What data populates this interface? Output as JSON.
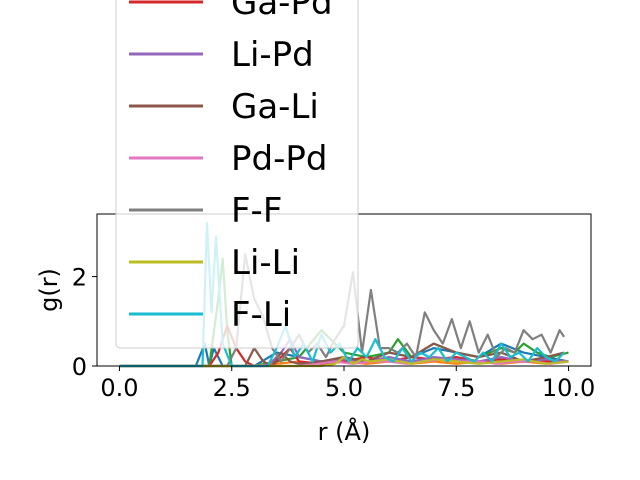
{
  "chart_data": {
    "type": "line",
    "title": "",
    "xlabel": "r (Å)",
    "ylabel": "g(r)",
    "xlim": [
      -0.5,
      10.5
    ],
    "ylim": [
      0,
      3.4
    ],
    "xticks": [
      "0.0",
      "2.5",
      "5.0",
      "7.5",
      "10.0"
    ],
    "xtick_values": [
      0,
      2.5,
      5,
      7.5,
      10
    ],
    "yticks": [
      "0",
      "2"
    ],
    "ytick_values": [
      0,
      2
    ],
    "grid": false,
    "legend_position": "upper-left, extending above the plot area",
    "series": [
      {
        "name": "Ga-Pd",
        "color": "#d62728",
        "x": [
          0,
          1.8,
          2.0,
          2.2,
          2.4,
          2.6,
          2.8,
          3.0,
          3.2,
          3.4,
          3.6,
          3.8,
          4.0,
          4.5,
          5.0,
          5.5,
          6.0,
          6.5,
          7.0,
          7.5,
          8.0,
          8.5,
          9.0,
          9.5,
          10.0
        ],
        "y": [
          0,
          0,
          0,
          0.3,
          0.9,
          0.4,
          0.1,
          0,
          0,
          0,
          0.2,
          0.4,
          0.1,
          0.05,
          0.1,
          0.2,
          0.1,
          0.2,
          0.15,
          0.2,
          0.1,
          0.15,
          0.1,
          0.1,
          0.1
        ]
      },
      {
        "name": "Li-Pd",
        "color": "#9467bd",
        "x": [
          0,
          2.4,
          2.6,
          2.8,
          3.0,
          3.2,
          3.4,
          3.6,
          3.8,
          4.0,
          4.5,
          5.0,
          5.5,
          6.0,
          6.5,
          7.0,
          7.5,
          8.0,
          8.5,
          9.0,
          9.5,
          10.0
        ],
        "y": [
          0,
          0,
          0,
          0,
          0,
          0,
          0.1,
          0.3,
          0.6,
          0.2,
          0.1,
          0.15,
          0.1,
          0.2,
          0.1,
          0.2,
          0.15,
          0.1,
          0.2,
          0.1,
          0.15,
          0.1
        ]
      },
      {
        "name": "Ga-Li",
        "color": "#8c564b",
        "x": [
          0,
          2.8,
          3.0,
          3.2,
          3.4,
          3.6,
          3.8,
          4.0,
          4.5,
          5.0,
          5.5,
          6.0,
          6.5,
          7.0,
          7.5,
          8.0,
          8.5,
          9.0,
          9.5,
          9.9
        ],
        "y": [
          0,
          0,
          0.4,
          0.1,
          0,
          0.3,
          0.1,
          0.05,
          0.1,
          0.2,
          0.1,
          0.3,
          0.2,
          0.5,
          0.3,
          0.2,
          0.3,
          0.1,
          0.2,
          0.3
        ]
      },
      {
        "name": "Pd-Pd",
        "color": "#e377c2",
        "x": [
          0,
          4.0,
          4.4,
          4.8,
          5.2,
          5.6,
          6.0,
          6.4,
          6.8,
          7.2,
          7.6,
          8.0,
          8.4,
          8.8,
          9.2,
          9.6,
          10.0
        ],
        "y": [
          0,
          0,
          0.05,
          0.1,
          0.05,
          0.1,
          0.1,
          0.05,
          0.1,
          0.15,
          0.1,
          0.1,
          0.05,
          0.1,
          0.1,
          0.05,
          0.1
        ]
      },
      {
        "name": "F-F",
        "color": "#7f7f7f",
        "x": [
          0,
          2.4,
          2.6,
          2.8,
          3.0,
          3.2,
          3.4,
          3.6,
          3.8,
          4.0,
          4.2,
          4.4,
          4.6,
          4.8,
          5.0,
          5.2,
          5.4,
          5.6,
          5.8,
          6.0,
          6.2,
          6.4,
          6.6,
          6.8,
          7.0,
          7.2,
          7.4,
          7.6,
          7.8,
          8.0,
          8.2,
          8.4,
          8.6,
          8.8,
          9.0,
          9.2,
          9.4,
          9.6,
          9.8,
          9.9
        ],
        "y": [
          0,
          0,
          0.4,
          2.5,
          1.5,
          1.1,
          0.4,
          0.1,
          0.4,
          0.7,
          0.3,
          0.5,
          0.2,
          0.6,
          0.9,
          2.1,
          0.3,
          1.7,
          0.4,
          0.4,
          0.3,
          0.5,
          0.2,
          1.2,
          0.8,
          0.5,
          1.05,
          0.4,
          1.0,
          0.3,
          0.7,
          0.2,
          0.4,
          0.3,
          0.8,
          0.6,
          0.7,
          0.3,
          0.8,
          0.65
        ]
      },
      {
        "name": "Li-Li",
        "color": "#bcbd22",
        "x": [
          0,
          4.5,
          4.8,
          5.0,
          5.2,
          5.4,
          5.6,
          6.0,
          6.5,
          7.0,
          7.5,
          8.0,
          8.5,
          9.0,
          9.5,
          10.0
        ],
        "y": [
          0,
          0,
          0.05,
          0.2,
          0.05,
          0.15,
          0.1,
          0.15,
          0.05,
          0.15,
          0.1,
          0.05,
          0.1,
          0.15,
          0.05,
          0.1
        ]
      },
      {
        "name": "F-Li",
        "color": "#17becf",
        "x": [
          0,
          1.7,
          1.85,
          1.95,
          2.05,
          2.15,
          2.3,
          2.5,
          2.7,
          2.9,
          3.1,
          3.3,
          3.5,
          3.7,
          3.9,
          4.1,
          4.3,
          4.5,
          4.7,
          4.9,
          5.1,
          5.3,
          5.5,
          5.7,
          5.9,
          6.1,
          6.3,
          6.5,
          6.7,
          6.9,
          7.1,
          7.3,
          7.5,
          7.7,
          7.9,
          8.1,
          8.3,
          8.5,
          8.7,
          8.9,
          9.1,
          9.3,
          9.5,
          9.7,
          9.9
        ],
        "y": [
          0,
          0,
          0,
          3.2,
          1.2,
          2.9,
          0.5,
          0,
          0,
          0,
          0,
          0,
          0.4,
          0.9,
          0.2,
          0.5,
          0.1,
          0.7,
          0.3,
          0.5,
          0.1,
          0.4,
          0.2,
          0.6,
          0.2,
          0.1,
          0.4,
          0.1,
          0.3,
          0.2,
          0.4,
          0.1,
          0.3,
          0.2,
          0.1,
          0.3,
          0.1,
          0.5,
          0.2,
          0.3,
          0.1,
          0.4,
          0.2,
          0.1,
          0.3
        ]
      },
      {
        "name": "",
        "color": "#1f77b4",
        "x": [
          0,
          1.7,
          1.9,
          2.0,
          2.1,
          2.3,
          2.5,
          3.0,
          3.5,
          4.0,
          4.5,
          5.0,
          5.5,
          6.0,
          6.5,
          7.0,
          7.5,
          8.0,
          8.5,
          9.0,
          9.5,
          10.0
        ],
        "y": [
          0,
          0,
          0.5,
          0,
          0.4,
          0,
          0,
          0,
          0.3,
          0.2,
          0.1,
          0.2,
          0.1,
          0.3,
          0.2,
          0.4,
          0.3,
          0.2,
          0.5,
          0.3,
          0.2,
          0.1
        ]
      },
      {
        "name": "",
        "color": "#2ca02c",
        "x": [
          0,
          2.0,
          2.2,
          2.3,
          2.4,
          2.5,
          2.7,
          3.0,
          3.5,
          4.0,
          4.5,
          5.0,
          5.5,
          6.0,
          6.2,
          6.5,
          7.0,
          7.5,
          8.0,
          8.5,
          8.8,
          9.0,
          9.3,
          9.6,
          10.0
        ],
        "y": [
          0,
          0,
          1.5,
          2.4,
          0.8,
          0,
          0,
          0,
          0.1,
          0.2,
          0.8,
          0.3,
          0.2,
          0.3,
          0.6,
          0.2,
          0.5,
          0.3,
          0.2,
          0.4,
          0.3,
          0.5,
          0.3,
          0.2,
          0.3
        ]
      },
      {
        "name": "",
        "color": "#ff7f0e",
        "x": [
          0,
          2.5,
          3.0,
          3.5,
          4.0,
          4.5,
          5.0,
          5.5,
          6.0,
          6.5,
          7.0,
          7.5,
          8.0,
          8.5,
          9.0,
          9.5,
          10.0
        ],
        "y": [
          0,
          0,
          0,
          0.05,
          0.1,
          0.05,
          0.1,
          0.05,
          0.1,
          0.05,
          0.1,
          0.05,
          0.1,
          0.05,
          0.1,
          0.05,
          0.1
        ]
      }
    ]
  }
}
